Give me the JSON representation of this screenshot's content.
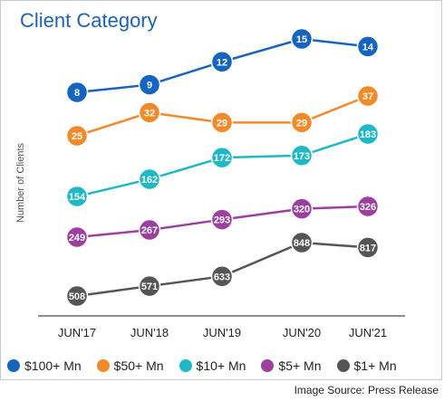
{
  "title": "Client Category",
  "ylabel": "Number of Clients",
  "source": "Image Source: Press Release",
  "chart_data": {
    "type": "line",
    "title": "Client Category",
    "ylabel": "Number of Clients",
    "xlabel": "",
    "x": [
      "JUN'17",
      "JUN'18",
      "JUN'19",
      "JUN'20",
      "JUN'21"
    ],
    "legend_position": "bottom",
    "grid": false,
    "series": [
      {
        "name": "$100+ Mn",
        "color": "#1565c0",
        "values": [
          8,
          9,
          12,
          15,
          14
        ]
      },
      {
        "name": "$50+ Mn",
        "color": "#f28a2a",
        "values": [
          25,
          32,
          29,
          29,
          37
        ]
      },
      {
        "name": "$10+ Mn",
        "color": "#1fb8c6",
        "values": [
          154,
          162,
          172,
          173,
          183
        ]
      },
      {
        "name": "$5+ Mn",
        "color": "#9c3fa0",
        "values": [
          249,
          267,
          293,
          320,
          326
        ]
      },
      {
        "name": "$1+ Mn",
        "color": "#555555",
        "values": [
          508,
          571,
          633,
          848,
          817
        ]
      }
    ]
  }
}
